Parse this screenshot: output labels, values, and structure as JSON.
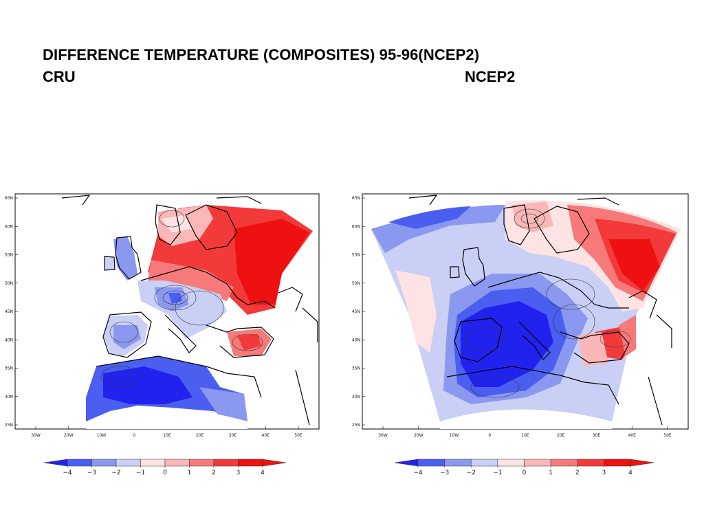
{
  "title": "DIFFERENCE TEMPERATURE (COMPOSITES) 95-96(NCEP2)",
  "left_label": "CRU",
  "right_label": "NCEP2",
  "lat_labels": [
    "65N",
    "60N",
    "55N",
    "50N",
    "45N",
    "40N",
    "35N",
    "30N",
    "25N"
  ],
  "lon_labels": [
    "30W",
    "20W",
    "10W",
    "0",
    "10E",
    "20E",
    "30E",
    "40E",
    "50E"
  ],
  "colorbar": {
    "labels": [
      "−4",
      "−3",
      "−2",
      "−1",
      "0",
      "1",
      "2",
      "3",
      "4"
    ],
    "colors": [
      "#2222ee",
      "#4a5ff0",
      "#8a98f0",
      "#c9cff5",
      "#fde3e3",
      "#f9b7b7",
      "#f77a7a",
      "#f23a3a",
      "#ee1111",
      "#ee1111"
    ]
  }
}
